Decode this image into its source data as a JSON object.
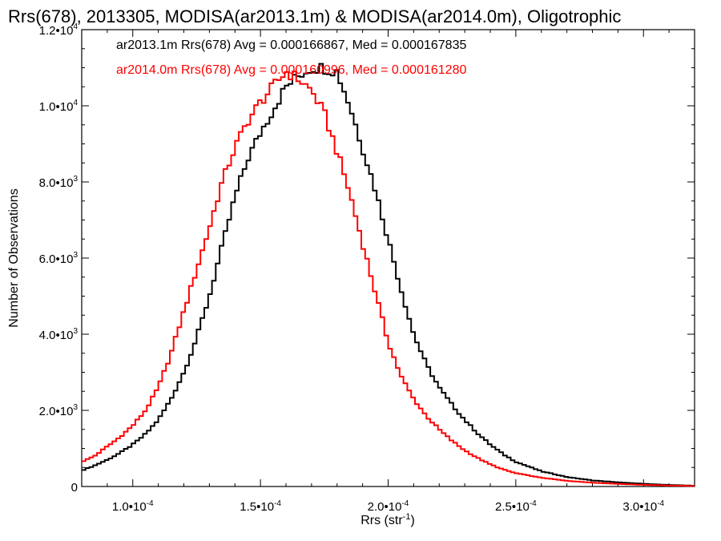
{
  "chart_data": {
    "type": "line",
    "title": "Rrs(678), 2013305, MODISA(ar2013.1m) & MODISA(ar2014.0m), Oligotrophic",
    "xlabel": "Rrs (str",
    "xlabel_sup": "-1",
    "xlabel_close": ")",
    "ylabel": "Number of Observations",
    "xlim": [
      8e-05,
      0.00032
    ],
    "ylim": [
      0,
      12000
    ],
    "xticks": [
      {
        "value": 0.0001,
        "mant": "1.0•10",
        "exp": "-4"
      },
      {
        "value": 0.00015,
        "mant": "1.5•10",
        "exp": "-4"
      },
      {
        "value": 0.0002,
        "mant": "2.0•10",
        "exp": "-4"
      },
      {
        "value": 0.00025,
        "mant": "2.5•10",
        "exp": "-4"
      },
      {
        "value": 0.0003,
        "mant": "3.0•10",
        "exp": "-4"
      }
    ],
    "yticks": [
      {
        "value": 0,
        "mant": "0",
        "exp": ""
      },
      {
        "value": 2000,
        "mant": "2.0•10",
        "exp": "3"
      },
      {
        "value": 4000,
        "mant": "4.0•10",
        "exp": "3"
      },
      {
        "value": 6000,
        "mant": "6.0•10",
        "exp": "3"
      },
      {
        "value": 8000,
        "mant": "8.0•10",
        "exp": "3"
      },
      {
        "value": 10000,
        "mant": "1.0•10",
        "exp": "4"
      },
      {
        "value": 12000,
        "mant": "1.2•10",
        "exp": "4"
      }
    ],
    "annotations": [
      "ar2013.1m Rrs(678) Avg = 0.000166867, Med = 0.000167835",
      "ar2014.0m Rrs(678) Avg = 0.000160996, Med = 0.000161280"
    ],
    "series": [
      {
        "name": "ar2013.1m",
        "color": "#000000",
        "x": [
          8e-05,
          8.5e-05,
          9e-05,
          9.5e-05,
          0.0001,
          0.000105,
          0.00011,
          0.000115,
          0.00012,
          0.000125,
          0.00013,
          0.000135,
          0.00014,
          0.000145,
          0.00015,
          0.000155,
          0.00016,
          0.000165,
          0.00017,
          0.000175,
          0.00018,
          0.000185,
          0.00019,
          0.000195,
          0.0002,
          0.000205,
          0.00021,
          0.000215,
          0.00022,
          0.000225,
          0.00023,
          0.000235,
          0.00024,
          0.000245,
          0.00025,
          0.00026,
          0.00027,
          0.00028,
          0.00029,
          0.0003,
          0.00031,
          0.00032
        ],
        "y": [
          420,
          550,
          700,
          880,
          1100,
          1380,
          1750,
          2300,
          3000,
          3900,
          5000,
          6300,
          7600,
          8600,
          9300,
          9900,
          10500,
          10800,
          11000,
          11000,
          10900,
          10000,
          8900,
          7800,
          6500,
          5200,
          4000,
          3200,
          2600,
          2150,
          1750,
          1400,
          1100,
          850,
          650,
          400,
          250,
          160,
          110,
          70,
          40,
          20
        ]
      },
      {
        "name": "ar2014.0m",
        "color": "#ff0000",
        "x": [
          8e-05,
          8.5e-05,
          9e-05,
          9.5e-05,
          0.0001,
          0.000105,
          0.00011,
          0.000115,
          0.00012,
          0.000125,
          0.00013,
          0.000135,
          0.00014,
          0.000145,
          0.00015,
          0.000155,
          0.00016,
          0.000165,
          0.00017,
          0.000175,
          0.00018,
          0.000185,
          0.00019,
          0.000195,
          0.0002,
          0.000205,
          0.00021,
          0.000215,
          0.00022,
          0.000225,
          0.00023,
          0.000235,
          0.00024,
          0.000245,
          0.00025,
          0.00026,
          0.00027,
          0.00028,
          0.00029,
          0.0003,
          0.00031,
          0.00032
        ],
        "y": [
          650,
          800,
          1050,
          1300,
          1600,
          2000,
          2600,
          3500,
          4600,
          5700,
          6800,
          8000,
          8900,
          9600,
          10100,
          10500,
          10900,
          10700,
          10400,
          9800,
          8800,
          7700,
          6400,
          5100,
          3800,
          2900,
          2300,
          1850,
          1500,
          1200,
          950,
          750,
          580,
          450,
          350,
          230,
          150,
          100,
          70,
          45,
          25,
          15
        ]
      }
    ]
  }
}
